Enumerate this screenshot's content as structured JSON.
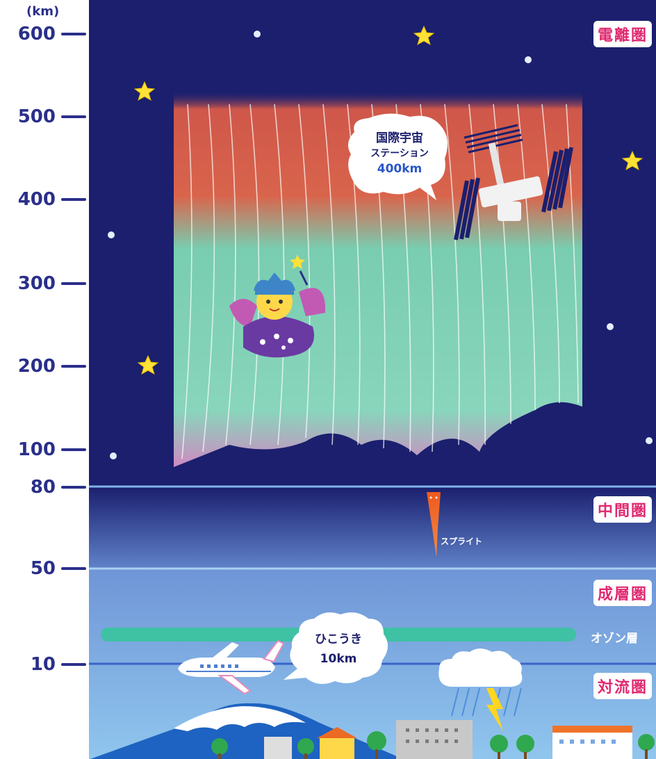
{
  "axis": {
    "unit": "(km)",
    "ticks": [
      "600",
      "500",
      "400",
      "300",
      "200",
      "100",
      "80",
      "50",
      "10"
    ]
  },
  "layers": {
    "thermosphere": "電離圏",
    "mesosphere": "中間圏",
    "stratosphere": "成層圏",
    "ozone": "オゾン層",
    "troposphere": "対流圏"
  },
  "iss_bubble": {
    "line1": "国際宇宙",
    "line2": "ステーション",
    "line3": "400km"
  },
  "plane_bubble": {
    "line1": "ひこうき",
    "line2": "10km"
  },
  "sprite_label": "スプライト",
  "colors": {
    "space": "#1b1f6e",
    "axis_text": "#2a2f8a",
    "badge_text": "#e0286f",
    "aurora_red": "#e3684a",
    "aurora_green": "#7ed6b4",
    "ozone": "#3fc1a4",
    "sky": "#8fc4ea",
    "sprite": "#ee5a1c"
  },
  "icons": [
    "star-icon",
    "iss-icon",
    "fairy-icon",
    "airplane-icon",
    "cloud-icon",
    "lightning-icon",
    "mountain-icon",
    "tree-icon",
    "building-icon"
  ]
}
